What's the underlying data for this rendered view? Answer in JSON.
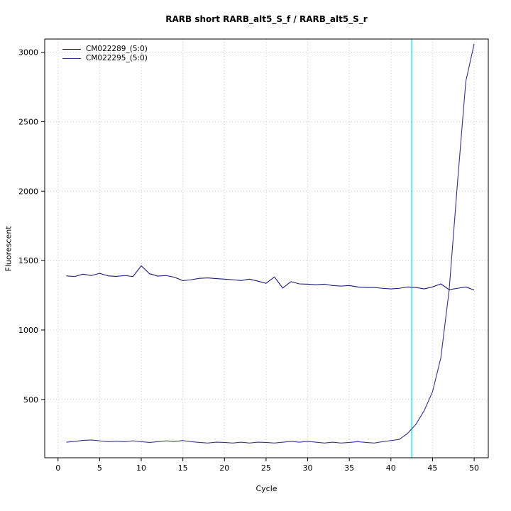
{
  "chart_data": {
    "type": "line",
    "title": "RARB short RARB_alt5_S_f / RARB_alt5_S_r",
    "xlabel": "Cycle",
    "ylabel": "Fluorescent",
    "legend_position": "top-left",
    "grid": {
      "on": true,
      "color": "#c9c9c9",
      "style": "dotted"
    },
    "x_ticks": [
      0,
      5,
      10,
      15,
      20,
      25,
      30,
      35,
      40,
      45,
      50
    ],
    "y_ticks": [
      500,
      1000,
      1500,
      2000,
      2500,
      3000
    ],
    "x_range": [
      -1.6,
      51.7
    ],
    "y_range": [
      80,
      3095
    ],
    "threshold_line": {
      "x": 42.5,
      "color": "#00e0e0"
    },
    "x": [
      1,
      2,
      3,
      4,
      5,
      6,
      7,
      8,
      9,
      10,
      11,
      12,
      13,
      14,
      15,
      16,
      17,
      18,
      19,
      20,
      21,
      22,
      23,
      24,
      25,
      26,
      27,
      28,
      29,
      30,
      31,
      32,
      33,
      34,
      35,
      36,
      37,
      38,
      39,
      40,
      41,
      42,
      43,
      44,
      45,
      46,
      47,
      48,
      49,
      50
    ],
    "series": [
      {
        "name": "CM022289_(5:0)",
        "color": "#1b1b78",
        "values": [
          1390,
          1385,
          1402,
          1392,
          1408,
          1390,
          1386,
          1392,
          1385,
          1462,
          1405,
          1388,
          1392,
          1380,
          1355,
          1362,
          1372,
          1375,
          1370,
          1366,
          1362,
          1356,
          1366,
          1352,
          1336,
          1382,
          1302,
          1348,
          1332,
          1330,
          1326,
          1330,
          1320,
          1316,
          1320,
          1310,
          1306,
          1306,
          1300,
          1296,
          1300,
          1310,
          1306,
          1296,
          1310,
          1332,
          1290,
          1300,
          1310,
          1288
        ]
      },
      {
        "name": "CM022295_(5:0)",
        "color": "#32328e",
        "values": [
          192,
          198,
          205,
          208,
          202,
          196,
          200,
          196,
          202,
          196,
          190,
          196,
          202,
          198,
          204,
          196,
          190,
          186,
          192,
          190,
          186,
          192,
          186,
          192,
          190,
          186,
          192,
          198,
          192,
          198,
          192,
          186,
          192,
          186,
          190,
          196,
          190,
          186,
          196,
          204,
          212,
          255,
          320,
          420,
          555,
          800,
          1290,
          2060,
          2790,
          3060
        ]
      }
    ]
  }
}
